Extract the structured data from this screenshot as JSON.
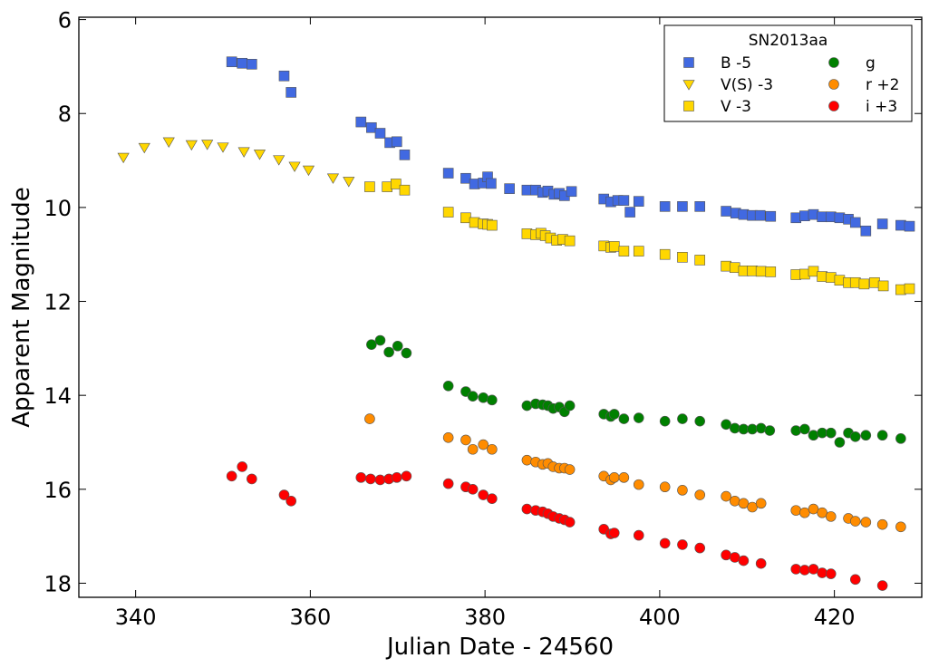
{
  "chart_data": {
    "type": "scatter",
    "title": "",
    "xlabel": "Julian Date - 24560",
    "ylabel": "Apparent Magnitude",
    "xlim": [
      333.5,
      430.0
    ],
    "ylim": [
      18.3,
      5.95
    ],
    "y_inverted": true,
    "xticks": [
      340,
      360,
      380,
      400,
      420
    ],
    "yticks": [
      6,
      8,
      10,
      12,
      14,
      16,
      18
    ],
    "legend": {
      "title": "SN2013aa",
      "location": "top-right",
      "columns": 2
    },
    "series": [
      {
        "name": "B -5",
        "marker": "square",
        "color": "#4169E1",
        "x": [
          351.0,
          352.2,
          353.3,
          357.0,
          357.8,
          365.8,
          367.0,
          368.0,
          369.1,
          369.9,
          370.8,
          375.8,
          377.8,
          378.8,
          379.8,
          380.3,
          380.7,
          382.8,
          384.8,
          385.8,
          386.6,
          387.2,
          387.9,
          388.5,
          389.1,
          389.9,
          393.6,
          394.4,
          395.2,
          395.9,
          396.6,
          397.6,
          400.6,
          402.6,
          404.6,
          407.6,
          408.7,
          409.6,
          410.6,
          411.5,
          412.7,
          415.6,
          416.6,
          417.6,
          418.6,
          419.6,
          420.6,
          421.6,
          422.4,
          423.6,
          425.5,
          427.6,
          428.6
        ],
        "y": [
          6.9,
          6.93,
          6.95,
          7.2,
          7.55,
          8.18,
          8.3,
          8.42,
          8.62,
          8.6,
          8.88,
          9.27,
          9.38,
          9.5,
          9.48,
          9.35,
          9.49,
          9.6,
          9.63,
          9.63,
          9.68,
          9.65,
          9.72,
          9.7,
          9.75,
          9.66,
          9.82,
          9.88,
          9.85,
          9.85,
          10.1,
          9.87,
          9.98,
          9.98,
          9.98,
          10.08,
          10.12,
          10.15,
          10.17,
          10.17,
          10.19,
          10.22,
          10.18,
          10.15,
          10.2,
          10.2,
          10.22,
          10.25,
          10.32,
          10.5,
          10.35,
          10.38,
          10.4
        ]
      },
      {
        "name": "V(S) -3",
        "marker": "triangle-down",
        "color": "#FFD700",
        "x": [
          338.6,
          341.0,
          343.8,
          346.4,
          348.2,
          350.0,
          352.4,
          354.2,
          356.4,
          358.2,
          359.8,
          362.6,
          364.4
        ],
        "y": [
          8.93,
          8.72,
          8.6,
          8.66,
          8.65,
          8.71,
          8.81,
          8.86,
          8.98,
          9.12,
          9.2,
          9.37,
          9.44
        ]
      },
      {
        "name": "V -3",
        "marker": "square",
        "color": "#FFD700",
        "x": [
          366.8,
          368.8,
          369.8,
          370.8,
          375.8,
          377.8,
          378.8,
          379.8,
          380.3,
          380.8,
          384.8,
          385.8,
          386.4,
          386.9,
          387.5,
          388.2,
          388.9,
          389.7,
          393.6,
          394.4,
          394.8,
          395.9,
          397.6,
          400.6,
          402.6,
          404.6,
          407.6,
          408.6,
          409.6,
          410.6,
          411.6,
          412.7,
          415.6,
          416.6,
          417.6,
          418.6,
          419.6,
          420.6,
          421.6,
          422.4,
          423.4,
          424.6,
          425.6,
          427.6,
          428.6
        ],
        "y": [
          9.56,
          9.56,
          9.5,
          9.63,
          10.1,
          10.22,
          10.32,
          10.35,
          10.36,
          10.38,
          10.56,
          10.58,
          10.55,
          10.6,
          10.65,
          10.7,
          10.68,
          10.71,
          10.82,
          10.85,
          10.83,
          10.93,
          10.93,
          11.0,
          11.06,
          11.12,
          11.25,
          11.28,
          11.35,
          11.35,
          11.36,
          11.37,
          11.43,
          11.42,
          11.36,
          11.47,
          11.49,
          11.55,
          11.6,
          11.6,
          11.63,
          11.6,
          11.67,
          11.75,
          11.73
        ]
      },
      {
        "name": "g",
        "marker": "circle",
        "color": "#008000",
        "x": [
          367.0,
          368.0,
          369.0,
          370.0,
          371.0,
          375.8,
          377.8,
          378.6,
          379.8,
          380.8,
          384.8,
          385.8,
          386.6,
          387.2,
          387.8,
          388.5,
          389.1,
          389.7,
          393.6,
          394.4,
          394.8,
          395.9,
          397.6,
          400.6,
          402.6,
          404.6,
          407.6,
          408.6,
          409.6,
          410.6,
          411.6,
          412.6,
          415.6,
          416.6,
          417.6,
          418.6,
          419.6,
          420.6,
          421.6,
          422.4,
          423.6,
          425.5,
          427.6
        ],
        "y": [
          12.92,
          12.83,
          13.08,
          12.95,
          13.1,
          13.8,
          13.92,
          14.02,
          14.05,
          14.1,
          14.22,
          14.18,
          14.2,
          14.22,
          14.28,
          14.25,
          14.35,
          14.22,
          14.4,
          14.45,
          14.4,
          14.5,
          14.48,
          14.55,
          14.5,
          14.55,
          14.62,
          14.7,
          14.72,
          14.72,
          14.7,
          14.75,
          14.75,
          14.72,
          14.85,
          14.8,
          14.8,
          15.0,
          14.8,
          14.88,
          14.85,
          14.85,
          14.92
        ]
      },
      {
        "name": "r +2",
        "marker": "circle",
        "color": "#FF8C00",
        "x": [
          366.8,
          375.8,
          377.8,
          378.6,
          379.8,
          380.8,
          384.8,
          385.8,
          386.6,
          387.2,
          387.8,
          388.5,
          389.1,
          389.7,
          393.6,
          394.4,
          394.8,
          395.9,
          397.6,
          400.6,
          402.6,
          404.6,
          407.6,
          408.6,
          409.6,
          410.6,
          411.6,
          415.6,
          416.6,
          417.6,
          418.6,
          419.6,
          421.6,
          422.4,
          423.6,
          425.5,
          427.6
        ],
        "y": [
          14.5,
          14.9,
          14.95,
          15.15,
          15.05,
          15.15,
          15.38,
          15.42,
          15.47,
          15.45,
          15.52,
          15.55,
          15.55,
          15.58,
          15.72,
          15.8,
          15.75,
          15.75,
          15.9,
          15.95,
          16.02,
          16.12,
          16.15,
          16.25,
          16.3,
          16.38,
          16.3,
          16.45,
          16.5,
          16.42,
          16.5,
          16.58,
          16.62,
          16.68,
          16.7,
          16.75,
          16.8
        ]
      },
      {
        "name": "i +3",
        "marker": "circle",
        "color": "#FF0000",
        "x": [
          351.0,
          352.2,
          353.3,
          357.0,
          357.8,
          365.8,
          366.9,
          368.0,
          369.0,
          369.9,
          371.0,
          375.8,
          377.8,
          378.6,
          379.8,
          380.8,
          384.8,
          385.8,
          386.6,
          387.2,
          387.8,
          388.5,
          389.1,
          389.7,
          393.6,
          394.4,
          394.8,
          397.6,
          400.6,
          402.6,
          404.6,
          407.6,
          408.6,
          409.6,
          411.6,
          415.6,
          416.6,
          417.6,
          418.6,
          419.6,
          422.4,
          425.5
        ],
        "y": [
          15.72,
          15.52,
          15.78,
          16.12,
          16.25,
          15.75,
          15.78,
          15.8,
          15.78,
          15.75,
          15.72,
          15.88,
          15.95,
          16.0,
          16.12,
          16.2,
          16.42,
          16.45,
          16.48,
          16.52,
          16.58,
          16.62,
          16.65,
          16.7,
          16.85,
          16.95,
          16.93,
          16.98,
          17.15,
          17.18,
          17.25,
          17.4,
          17.45,
          17.52,
          17.58,
          17.7,
          17.72,
          17.7,
          17.78,
          17.8,
          17.92,
          18.05
        ]
      }
    ]
  }
}
